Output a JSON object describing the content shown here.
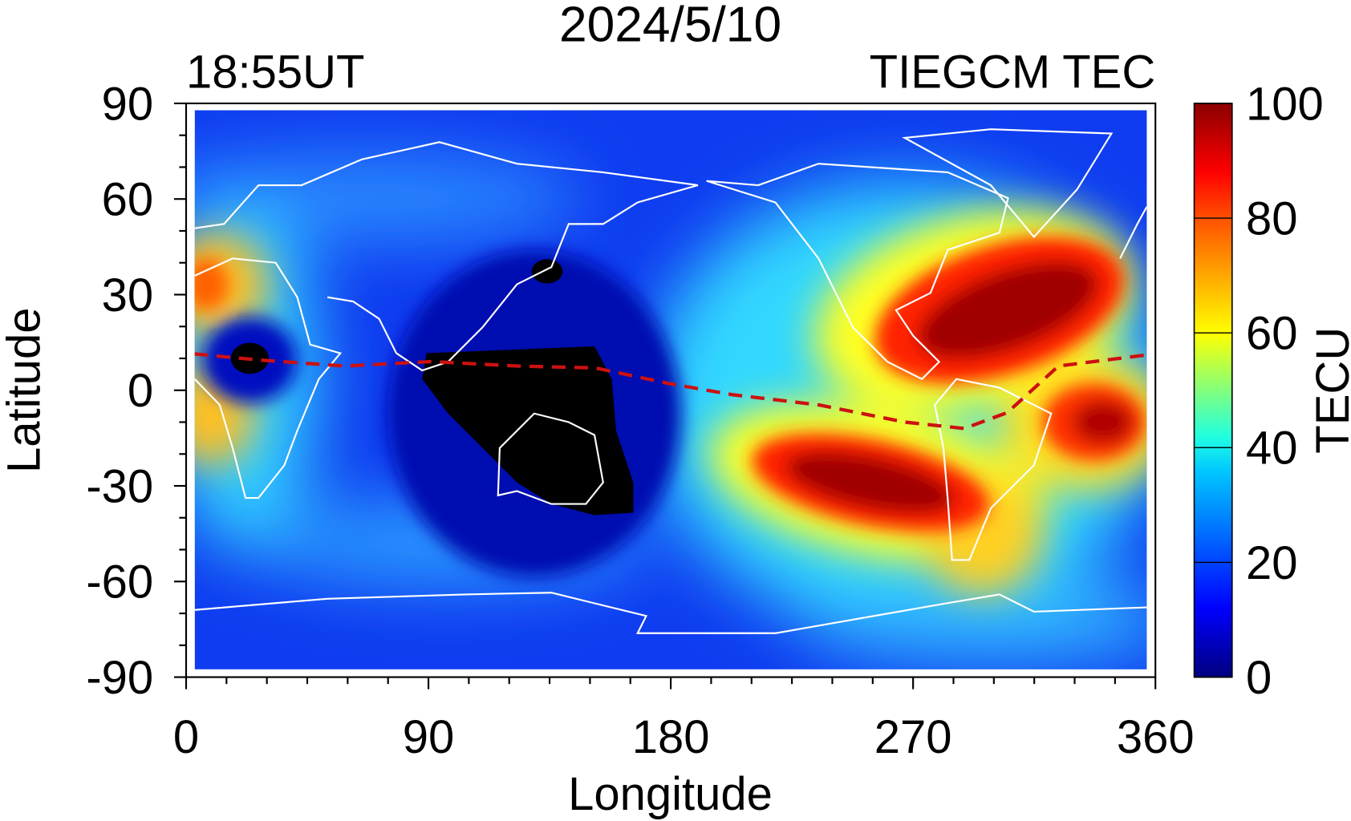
{
  "chart_data": {
    "type": "heatmap",
    "title": "2024/5/10",
    "subtitle_left": "18:55UT",
    "subtitle_right": "TIEGCM TEC",
    "xlabel": "Longitude",
    "ylabel": "Latitude",
    "xlim": [
      0,
      360
    ],
    "ylim": [
      -90,
      90
    ],
    "xticks": [
      "0",
      "90",
      "180",
      "270",
      "360"
    ],
    "yticks": [
      "90",
      "60",
      "30",
      "0",
      "-30",
      "-60",
      "-90"
    ],
    "colorbar": {
      "label": "TECU",
      "range": [
        0,
        100
      ],
      "ticks": [
        "100",
        "80",
        "60",
        "40",
        "20",
        "0"
      ],
      "colormap": "jet"
    },
    "regions": [
      {
        "lon": 290,
        "lat": 25,
        "tec": 100
      },
      {
        "lon": 255,
        "lat": -30,
        "tec": 100
      },
      {
        "lon": 340,
        "lat": -5,
        "tec": 95
      },
      {
        "lon": 5,
        "lat": 30,
        "tec": 75
      },
      {
        "lon": 5,
        "lat": -5,
        "tec": 75
      },
      {
        "lon": 20,
        "lat": 10,
        "tec": 0
      },
      {
        "lon": 125,
        "lat": -15,
        "tec": 0
      },
      {
        "lon": 135,
        "lat": 35,
        "tec": 0
      }
    ],
    "magnetic_equator": {
      "color": "#cc1111",
      "style": "dashed",
      "points": [
        [
          3,
          11.4
        ],
        [
          27,
          9.5
        ],
        [
          59,
          7.6
        ],
        [
          91,
          9
        ],
        [
          123,
          7.6
        ],
        [
          152,
          7
        ],
        [
          180,
          2
        ],
        [
          203,
          -1.4
        ],
        [
          235,
          -4.6
        ],
        [
          267,
          -10
        ],
        [
          289,
          -12
        ],
        [
          305,
          -7
        ],
        [
          324,
          7.6
        ],
        [
          356,
          11
        ]
      ]
    },
    "coastlines_color": "#ffffff"
  }
}
